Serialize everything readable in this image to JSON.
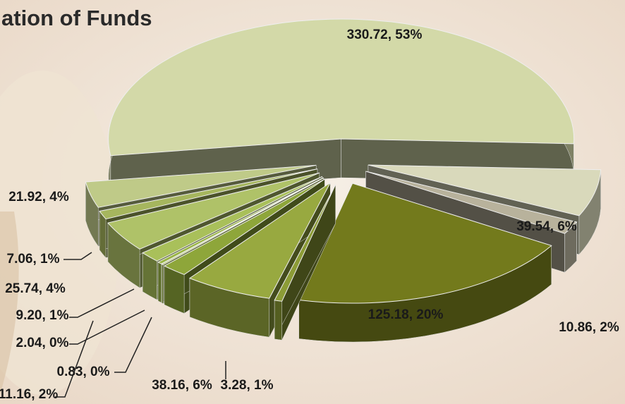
{
  "chart_data": {
    "type": "pie3d",
    "title": "ation of Funds",
    "values": [
      330.72,
      39.54,
      10.86,
      125.18,
      3.28,
      38.16,
      11.16,
      0.83,
      2.04,
      9.2,
      25.74,
      7.06,
      21.92
    ],
    "value_labels": [
      "330.72, 53%",
      "39.54, 6%",
      "10.86, 2%",
      "125.18, 20%",
      "3.28, 1%",
      "38.16, 6%",
      "11.16, 2%",
      "0.83, 0%",
      "2.04, 0%",
      "9.20, 1%",
      "25.74, 4%",
      "7.06, 1%",
      "21.92, 4%"
    ],
    "colors": [
      "#d3d9a8",
      "#d9d9bb",
      "#b8b29c",
      "#737a1c",
      "#8c9c36",
      "#98a940",
      "#8ea63a",
      "#a2b74a",
      "#9bb646",
      "#a9c05a",
      "#afc268",
      "#a6b65e",
      "#bfca88"
    ]
  }
}
